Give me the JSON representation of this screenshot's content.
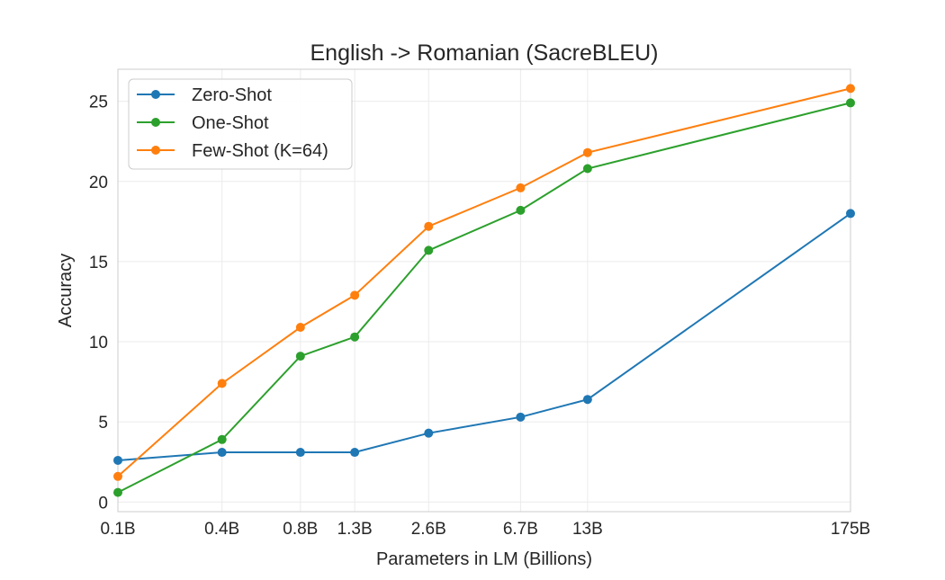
{
  "chart_data": {
    "type": "line",
    "title": "English -> Romanian (SacreBLEU)",
    "xlabel": "Parameters in LM (Billions)",
    "ylabel": "Accuracy",
    "x_scale": "log",
    "x": [
      0.125,
      0.35,
      0.76,
      1.3,
      2.7,
      6.7,
      13,
      175
    ],
    "x_tick_labels": [
      "0.1B",
      "0.4B",
      "0.8B",
      "1.3B",
      "2.6B",
      "6.7B",
      "13B",
      "175B"
    ],
    "y_ticks": [
      0,
      5,
      10,
      15,
      20,
      25
    ],
    "ylim": [
      -0.6,
      27.0
    ],
    "grid": true,
    "legend_position": "top-left",
    "series": [
      {
        "name": "Zero-Shot",
        "color": "#1f77b4",
        "values": [
          2.6,
          3.1,
          3.1,
          3.1,
          4.3,
          5.3,
          6.4,
          18.0
        ]
      },
      {
        "name": "One-Shot",
        "color": "#2ca02c",
        "values": [
          0.6,
          3.9,
          9.1,
          10.3,
          15.7,
          18.2,
          20.8,
          24.9
        ]
      },
      {
        "name": "Few-Shot (K=64)",
        "color": "#ff7f0e",
        "values": [
          1.6,
          7.4,
          10.9,
          12.9,
          17.2,
          19.6,
          21.8,
          25.8
        ]
      }
    ]
  }
}
